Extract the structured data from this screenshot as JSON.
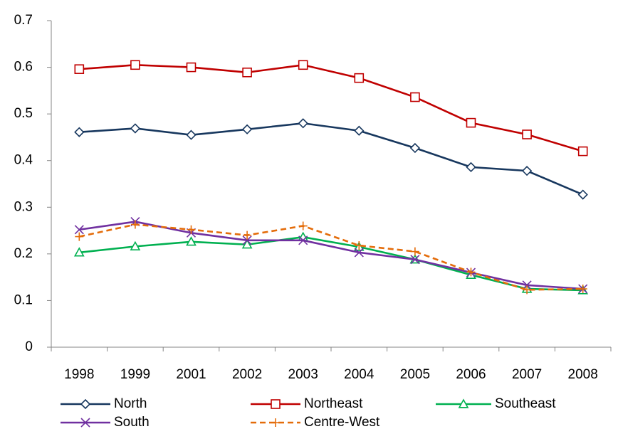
{
  "chart_data": {
    "type": "line",
    "categories": [
      "1998",
      "1999",
      "2001",
      "2002",
      "2003",
      "2004",
      "2005",
      "2006",
      "2007",
      "2008"
    ],
    "series": [
      {
        "name": "North",
        "color": "#17375e",
        "marker": "diamond",
        "dash": "solid",
        "values": [
          0.461,
          0.469,
          0.455,
          0.467,
          0.48,
          0.464,
          0.427,
          0.386,
          0.378,
          0.327
        ]
      },
      {
        "name": "Northeast",
        "color": "#c00000",
        "marker": "square",
        "dash": "solid",
        "values": [
          0.596,
          0.605,
          0.6,
          0.589,
          0.605,
          0.577,
          0.536,
          0.481,
          0.456,
          0.42
        ]
      },
      {
        "name": "Southeast",
        "color": "#00b050",
        "marker": "triangle",
        "dash": "solid",
        "values": [
          0.203,
          0.216,
          0.226,
          0.22,
          0.236,
          0.215,
          0.188,
          0.155,
          0.125,
          0.122
        ]
      },
      {
        "name": "South",
        "color": "#7030a0",
        "marker": "x",
        "dash": "solid",
        "values": [
          0.252,
          0.269,
          0.245,
          0.229,
          0.229,
          0.203,
          0.188,
          0.16,
          0.133,
          0.125
        ]
      },
      {
        "name": "Centre-West",
        "color": "#e46c0a",
        "marker": "plus",
        "dash": "dashed",
        "values": [
          0.237,
          0.263,
          0.252,
          0.24,
          0.26,
          0.218,
          0.205,
          0.161,
          0.123,
          0.125
        ]
      }
    ],
    "ylim": [
      0,
      0.7
    ],
    "yticks": [
      0,
      0.1,
      0.2,
      0.3,
      0.4,
      0.5,
      0.6,
      0.7
    ],
    "grid": false,
    "legend": "bottom"
  }
}
